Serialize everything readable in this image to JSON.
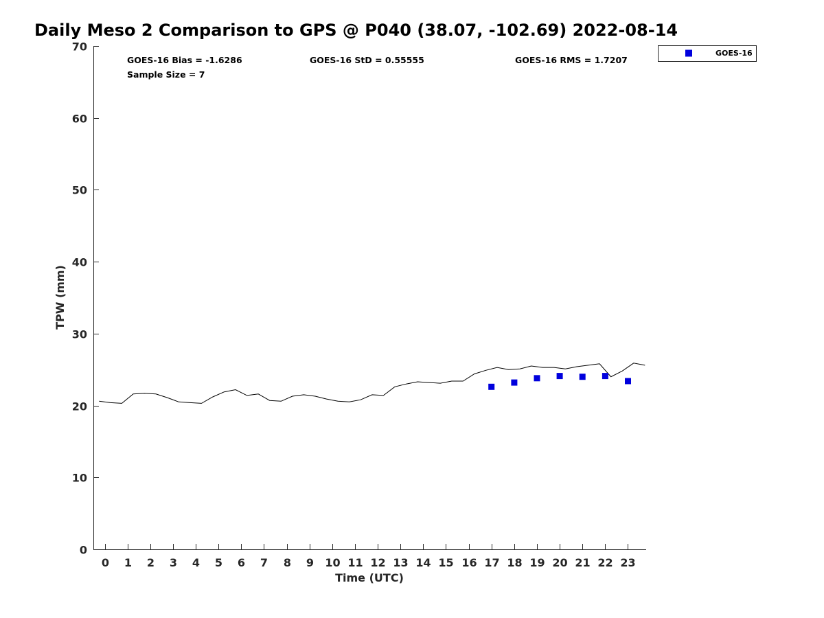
{
  "chart_data": {
    "type": "scatter",
    "title": "Daily Meso 2 Comparison to GPS @ P040 (38.07, -102.69) 2022-08-14",
    "xlabel": "Time (UTC)",
    "ylabel": "TPW (mm)",
    "xlim": [
      -0.5,
      23.8
    ],
    "ylim": [
      0,
      70
    ],
    "xticks": [
      0,
      1,
      2,
      3,
      4,
      5,
      6,
      7,
      8,
      9,
      10,
      11,
      12,
      13,
      14,
      15,
      16,
      17,
      18,
      19,
      20,
      21,
      22,
      23
    ],
    "yticks": [
      0,
      10,
      20,
      30,
      40,
      50,
      60,
      70
    ],
    "grid": false,
    "legend_position": "top-right (outside plot)",
    "annotations": {
      "bias": "GOES-16 Bias = -1.6286",
      "std": "GOES-16 StD = 0.55555",
      "rms": "GOES-16 RMS = 1.7207",
      "sample": "Sample Size = 7"
    },
    "series": [
      {
        "kind": "line",
        "color": "#000000",
        "x": [
          -0.25,
          0.25,
          0.75,
          1.25,
          1.75,
          2.25,
          2.75,
          3.25,
          3.75,
          4.25,
          4.75,
          5.25,
          5.75,
          6.25,
          6.75,
          7.25,
          7.75,
          8.25,
          8.75,
          9.25,
          9.75,
          10.25,
          10.75,
          11.25,
          11.75,
          12.25,
          12.75,
          13.25,
          13.75,
          14.25,
          14.75,
          15.25,
          15.75,
          16.25,
          16.75,
          17.25,
          17.75,
          18.25,
          18.75,
          19.25,
          19.75,
          20.25,
          20.75,
          21.25,
          21.75,
          22.25,
          22.75,
          23.25,
          23.75
        ],
        "y": [
          20.6,
          20.4,
          20.3,
          21.6,
          21.7,
          21.6,
          21.1,
          20.5,
          20.4,
          20.3,
          21.2,
          21.9,
          22.2,
          21.4,
          21.6,
          20.7,
          20.6,
          21.3,
          21.5,
          21.3,
          20.9,
          20.6,
          20.5,
          20.8,
          21.5,
          21.4,
          22.6,
          23.0,
          23.3,
          23.2,
          23.1,
          23.4,
          23.4,
          24.4,
          24.9,
          25.3,
          25.0,
          25.1,
          25.5,
          25.3,
          25.3,
          25.1,
          25.4,
          25.6,
          25.8,
          24.0,
          24.8,
          25.9,
          25.6
        ]
      },
      {
        "kind": "marker",
        "name": "GOES-16",
        "color": "#0000dd",
        "x": [
          17,
          18,
          19,
          20,
          21,
          22,
          23
        ],
        "y": [
          22.6,
          23.2,
          23.8,
          24.1,
          24.0,
          24.1,
          23.4
        ]
      }
    ]
  }
}
